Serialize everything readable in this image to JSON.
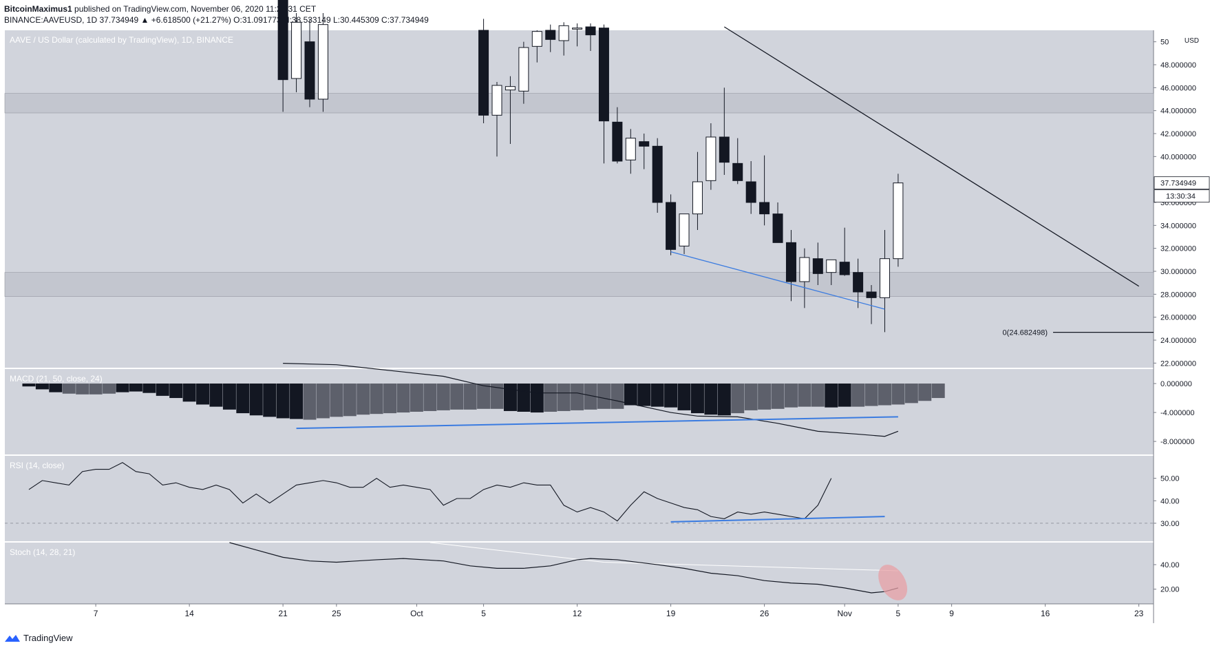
{
  "header": {
    "author": "BitcoinMaximus1",
    "published": " published on TradingView.com, November 06, 2020 11:29:31 CET",
    "symbol_line": "BINANCE:AAVEUSD, 1D  37.734949  ▲ +6.618500 (+21.27%)  O:31.091773  H:38.533149  L:30.445309  C:37.734949"
  },
  "footer": {
    "brand": "TradingView"
  },
  "colors": {
    "pane_bg": "#d1d4dc",
    "zone": "#c3c6cf",
    "up": "#ffffff",
    "down": "#131722",
    "hist_dark": "#131722",
    "hist_grey": "#5d606b",
    "divergence": "#3a7be0",
    "stoch_highlight": "#e7a0a6"
  },
  "chart_data": [
    {
      "type": "candlestick",
      "title": "AAVE / US Dollar (calculated by TradingView), 1D, BINANCE",
      "ylim": [
        21.6,
        51
      ],
      "price_ticks": [
        22,
        24,
        26,
        28,
        30,
        32,
        34,
        36,
        38,
        40,
        42,
        44,
        46,
        48,
        50
      ],
      "price_tick_labels": [
        "22.000000",
        "24.000000",
        "26.000000",
        "28.000000",
        "30.000000",
        "32.000000",
        "34.000000",
        "36.000000",
        "38.000000",
        "40.000000",
        "42.000000",
        "44.000000",
        "46.000000",
        "48.000000",
        "50"
      ],
      "currency": "USD",
      "last_price_label": "37.734949",
      "countdown_label": "13:30:34",
      "fib_label": "0(24.682498)",
      "fib_level": 24.682498,
      "x_tick_labels": [
        "7",
        "14",
        "21",
        "25",
        "Oct",
        "5",
        "12",
        "19",
        "26",
        "Nov",
        "5",
        "9",
        "16",
        "23"
      ],
      "x_tick_days": [
        7,
        14,
        21,
        25,
        31,
        36,
        43,
        50,
        57,
        63,
        67,
        71,
        78,
        85
      ],
      "start_date": "2020-09-01",
      "resistance_zones": [
        [
          43.8,
          45.5
        ],
        [
          27.8,
          29.9
        ]
      ],
      "trendline": [
        {
          "day": 54,
          "value": 51.3
        },
        {
          "day": 85,
          "value": 28.7
        }
      ],
      "divergence_line": [
        {
          "day": 50,
          "value": 31.7
        },
        {
          "day": 66,
          "value": 26.7
        }
      ],
      "candles": [
        {
          "day": 21,
          "o": 55.0,
          "h": 56.0,
          "l": 43.9,
          "c": 46.7
        },
        {
          "day": 22,
          "o": 46.8,
          "h": 52.5,
          "l": 45.6,
          "c": 51.7
        },
        {
          "day": 23,
          "o": 50.0,
          "h": 52.0,
          "l": 44.3,
          "c": 45.0
        },
        {
          "day": 24,
          "o": 45.0,
          "h": 52.5,
          "l": 43.9,
          "c": 51.5
        },
        {
          "day": 36,
          "o": 51.0,
          "h": 52.0,
          "l": 42.9,
          "c": 43.6
        },
        {
          "day": 37,
          "o": 43.6,
          "h": 46.5,
          "l": 40.0,
          "c": 46.2
        },
        {
          "day": 38,
          "o": 45.8,
          "h": 47.0,
          "l": 41.1,
          "c": 46.1
        },
        {
          "day": 39,
          "o": 45.7,
          "h": 50.0,
          "l": 44.6,
          "c": 49.5
        },
        {
          "day": 40,
          "o": 49.6,
          "h": 51.0,
          "l": 48.2,
          "c": 50.9
        },
        {
          "day": 41,
          "o": 51.0,
          "h": 51.5,
          "l": 49.1,
          "c": 50.2
        },
        {
          "day": 42,
          "o": 50.1,
          "h": 51.7,
          "l": 48.8,
          "c": 51.4
        },
        {
          "day": 43,
          "o": 51.1,
          "h": 51.6,
          "l": 49.6,
          "c": 51.2
        },
        {
          "day": 44,
          "o": 51.3,
          "h": 51.6,
          "l": 49.2,
          "c": 50.6
        },
        {
          "day": 45,
          "o": 51.2,
          "h": 51.5,
          "l": 39.4,
          "c": 43.1
        },
        {
          "day": 46,
          "o": 43.0,
          "h": 44.3,
          "l": 39.4,
          "c": 39.6
        },
        {
          "day": 47,
          "o": 39.7,
          "h": 42.4,
          "l": 38.5,
          "c": 41.6
        },
        {
          "day": 48,
          "o": 41.3,
          "h": 42.0,
          "l": 38.9,
          "c": 40.9
        },
        {
          "day": 49,
          "o": 40.9,
          "h": 41.6,
          "l": 35.1,
          "c": 36.0
        },
        {
          "day": 50,
          "o": 36.0,
          "h": 36.7,
          "l": 31.4,
          "c": 31.9
        },
        {
          "day": 51,
          "o": 32.2,
          "h": 35.0,
          "l": 31.5,
          "c": 35.0
        },
        {
          "day": 52,
          "o": 35.0,
          "h": 40.4,
          "l": 33.6,
          "c": 37.8
        },
        {
          "day": 53,
          "o": 37.9,
          "h": 42.9,
          "l": 37.1,
          "c": 41.7
        },
        {
          "day": 54,
          "o": 41.7,
          "h": 46.0,
          "l": 38.4,
          "c": 39.5
        },
        {
          "day": 55,
          "o": 39.4,
          "h": 41.6,
          "l": 37.6,
          "c": 37.9
        },
        {
          "day": 56,
          "o": 37.8,
          "h": 39.6,
          "l": 35.0,
          "c": 36.0
        },
        {
          "day": 57,
          "o": 36.0,
          "h": 40.1,
          "l": 34.0,
          "c": 35.0
        },
        {
          "day": 58,
          "o": 35.0,
          "h": 36.0,
          "l": 32.5,
          "c": 32.5
        },
        {
          "day": 59,
          "o": 32.5,
          "h": 33.6,
          "l": 27.4,
          "c": 29.1
        },
        {
          "day": 60,
          "o": 29.1,
          "h": 32.0,
          "l": 26.8,
          "c": 31.2
        },
        {
          "day": 61,
          "o": 31.1,
          "h": 32.5,
          "l": 28.8,
          "c": 29.8
        },
        {
          "day": 62,
          "o": 29.9,
          "h": 31.0,
          "l": 28.8,
          "c": 31.0
        },
        {
          "day": 63,
          "o": 30.8,
          "h": 33.8,
          "l": 29.6,
          "c": 29.7
        },
        {
          "day": 64,
          "o": 29.9,
          "h": 31.1,
          "l": 26.8,
          "c": 28.2
        },
        {
          "day": 65,
          "o": 28.2,
          "h": 28.8,
          "l": 25.4,
          "c": 27.7
        },
        {
          "day": 66,
          "o": 27.7,
          "h": 33.6,
          "l": 24.7,
          "c": 31.1
        },
        {
          "day": 67,
          "o": 31.1,
          "h": 38.5,
          "l": 30.4,
          "c": 37.7
        }
      ]
    },
    {
      "type": "bar",
      "title": "MACD (21, 50, close, 24)",
      "ylim": [
        -9.8,
        2.0
      ],
      "tick_values": [
        0,
        -4,
        -8
      ],
      "tick_labels": [
        "0.000000",
        "-4.000000",
        "-8.000000"
      ],
      "start_day": 2,
      "histogram": [
        -0.4,
        -0.8,
        -1.2,
        -1.4,
        -1.5,
        -1.5,
        -1.4,
        -1.2,
        -1.1,
        -1.3,
        -1.7,
        -2.0,
        -2.5,
        -2.9,
        -3.2,
        -3.6,
        -4.1,
        -4.4,
        -4.6,
        -4.8,
        -4.9,
        -5.0,
        -4.8,
        -4.6,
        -4.5,
        -4.3,
        -4.2,
        -4.1,
        -4.0,
        -3.9,
        -3.8,
        -3.7,
        -3.6,
        -3.6,
        -3.5,
        -3.5,
        -3.8,
        -3.9,
        -4.0,
        -3.9,
        -3.8,
        -3.7,
        -3.6,
        -3.5,
        -3.5,
        -3.0,
        -3.1,
        -3.2,
        -3.3,
        -3.7,
        -4.1,
        -4.3,
        -4.4,
        -4.1,
        -3.7,
        -3.6,
        -3.5,
        -3.3,
        -3.2,
        -3.2,
        -3.3,
        -3.2,
        -3.2,
        -3.1,
        -3.0,
        -2.9,
        -2.7,
        -2.4,
        -2.0
      ],
      "histogram_dark": [
        true,
        true,
        true,
        false,
        false,
        false,
        false,
        true,
        true,
        true,
        true,
        true,
        true,
        true,
        true,
        true,
        true,
        true,
        true,
        true,
        true,
        false,
        false,
        false,
        false,
        false,
        false,
        false,
        false,
        false,
        false,
        false,
        false,
        false,
        false,
        false,
        true,
        true,
        true,
        false,
        false,
        false,
        false,
        false,
        false,
        true,
        true,
        true,
        true,
        true,
        true,
        true,
        true,
        false,
        false,
        false,
        false,
        false,
        false,
        false,
        true,
        true,
        false,
        false,
        false,
        false,
        false,
        false,
        false
      ],
      "macd_line": [
        {
          "day": 21,
          "value": 2.8
        },
        {
          "day": 25,
          "value": 2.6
        },
        {
          "day": 30,
          "value": 1.6
        },
        {
          "day": 33,
          "value": 1.0
        },
        {
          "day": 36,
          "value": -0.3
        },
        {
          "day": 40,
          "value": -1.3
        },
        {
          "day": 43,
          "value": -1.3
        },
        {
          "day": 46,
          "value": -2.4
        },
        {
          "day": 50,
          "value": -4.0
        },
        {
          "day": 52,
          "value": -4.5
        },
        {
          "day": 55,
          "value": -4.6
        },
        {
          "day": 58,
          "value": -5.5
        },
        {
          "day": 61,
          "value": -6.6
        },
        {
          "day": 64,
          "value": -7.0
        },
        {
          "day": 66,
          "value": -7.3
        },
        {
          "day": 67,
          "value": -6.6
        }
      ],
      "divergence_line": [
        {
          "day": 22,
          "value": -6.2
        },
        {
          "day": 67,
          "value": -4.6
        }
      ]
    },
    {
      "type": "line",
      "title": "RSI (14, close)",
      "ylim": [
        22,
        60
      ],
      "tick_values": [
        50,
        40,
        30
      ],
      "tick_labels": [
        "50.00",
        "40.00",
        "30.00"
      ],
      "oversold": 30,
      "start_day": 2,
      "values": [
        45,
        49,
        48,
        47,
        53,
        54,
        54,
        57,
        53,
        52,
        47,
        48,
        46,
        45,
        47,
        45,
        39,
        43,
        39,
        43,
        47,
        48,
        49,
        48,
        46,
        46,
        50,
        46,
        47,
        46,
        45,
        38,
        41,
        41,
        45,
        47,
        46,
        48,
        47,
        47,
        38,
        35,
        37,
        35,
        31,
        38,
        44,
        41,
        39,
        37,
        36,
        33,
        32,
        35,
        34,
        35,
        34,
        33,
        32,
        38,
        50
      ],
      "divergence_line": [
        {
          "day": 50,
          "value": 30.6
        },
        {
          "day": 66,
          "value": 33.0
        }
      ]
    },
    {
      "type": "line",
      "title": "Stoch (14, 28, 21)",
      "ylim": [
        8,
        58
      ],
      "tick_values": [
        40,
        20
      ],
      "tick_labels": [
        "40.00",
        "20.00"
      ],
      "k_line": [
        {
          "day": 17,
          "value": 58
        },
        {
          "day": 19,
          "value": 52
        },
        {
          "day": 21,
          "value": 46
        },
        {
          "day": 23,
          "value": 43
        },
        {
          "day": 25,
          "value": 42
        },
        {
          "day": 28,
          "value": 44
        },
        {
          "day": 30,
          "value": 45
        },
        {
          "day": 33,
          "value": 43
        },
        {
          "day": 35,
          "value": 39
        },
        {
          "day": 37,
          "value": 37
        },
        {
          "day": 39,
          "value": 37
        },
        {
          "day": 41,
          "value": 39
        },
        {
          "day": 43,
          "value": 44
        },
        {
          "day": 44,
          "value": 45
        },
        {
          "day": 46,
          "value": 44
        },
        {
          "day": 49,
          "value": 40
        },
        {
          "day": 51,
          "value": 37
        },
        {
          "day": 53,
          "value": 33
        },
        {
          "day": 55,
          "value": 31
        },
        {
          "day": 57,
          "value": 27
        },
        {
          "day": 59,
          "value": 25
        },
        {
          "day": 61,
          "value": 24
        },
        {
          "day": 63,
          "value": 21
        },
        {
          "day": 65,
          "value": 17
        },
        {
          "day": 66,
          "value": 18
        },
        {
          "day": 67,
          "value": 21
        }
      ],
      "signal_line": [
        {
          "day": 32,
          "value": 58
        },
        {
          "day": 45,
          "value": 42
        },
        {
          "day": 67,
          "value": 35
        }
      ]
    }
  ]
}
